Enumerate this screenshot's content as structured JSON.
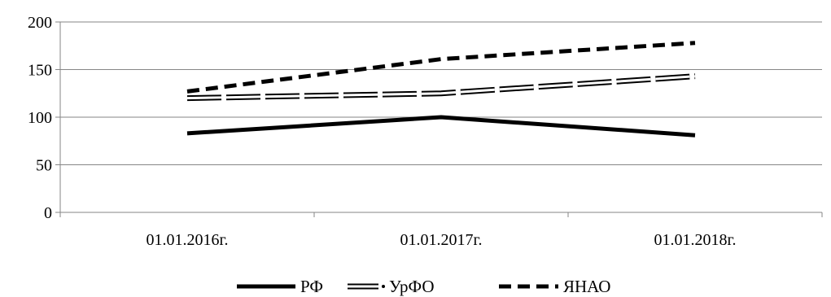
{
  "chart_data": {
    "type": "line",
    "categories": [
      "01.01.2016г.",
      "01.01.2017г.",
      "01.01.2018г."
    ],
    "ylim": [
      0,
      200
    ],
    "yticks": [
      "0",
      "50",
      "100",
      "150",
      "200"
    ],
    "grid": true,
    "legend_position": "bottom",
    "series": [
      {
        "name": "РФ",
        "values": [
          83,
          100,
          81
        ],
        "style": "solid",
        "color": "#000000"
      },
      {
        "name": "УрФО",
        "values": [
          120,
          125,
          143
        ],
        "style": "double-dashed",
        "color": "#000000"
      },
      {
        "name": "ЯНАО",
        "values": [
          127,
          161,
          178
        ],
        "style": "dashed",
        "color": "#000000"
      }
    ]
  }
}
